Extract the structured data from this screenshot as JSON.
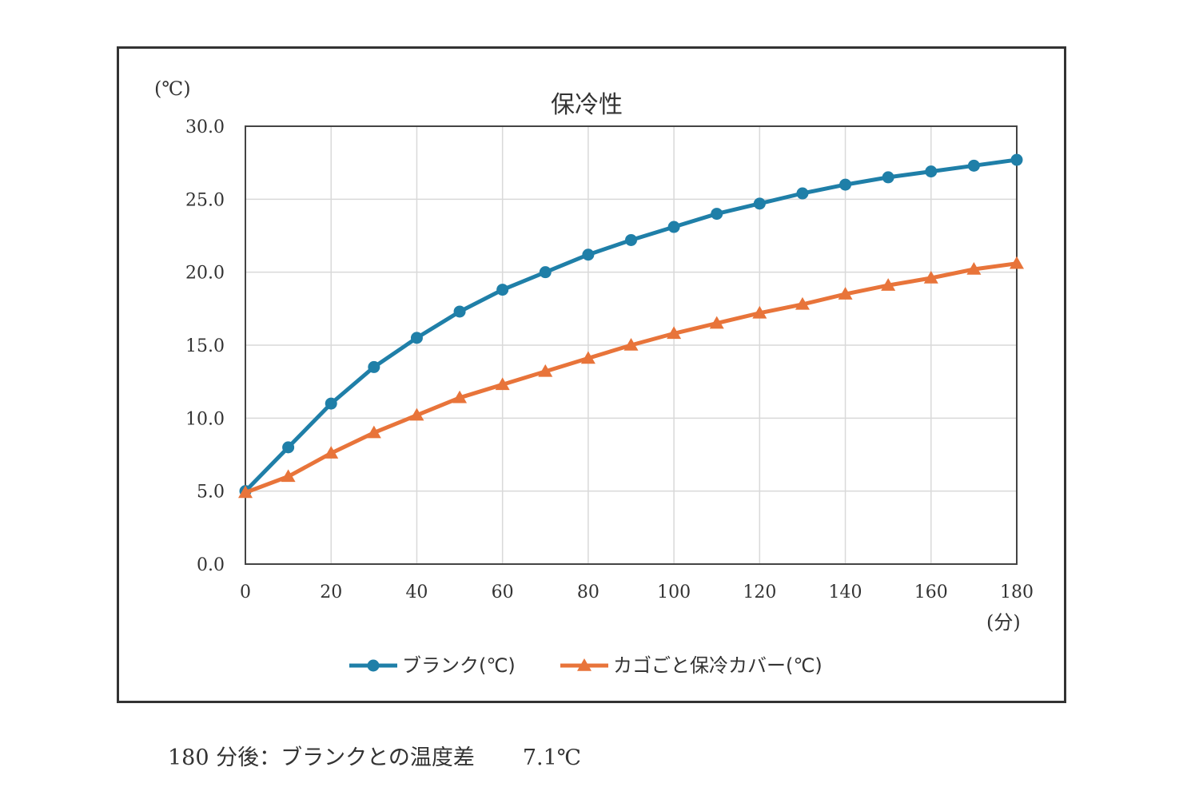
{
  "chart_data": {
    "type": "line",
    "title": "保冷性",
    "ylabel": "(℃)",
    "xlabel": "(分)",
    "ylim": [
      0,
      30
    ],
    "xlim": [
      0,
      180
    ],
    "y_ticks": [
      "0.0",
      "5.0",
      "10.0",
      "15.0",
      "20.0",
      "25.0",
      "30.0"
    ],
    "x_ticks": [
      "0",
      "20",
      "40",
      "60",
      "80",
      "100",
      "120",
      "140",
      "160",
      "180"
    ],
    "grid": true,
    "legend_position": "bottom",
    "x": [
      0,
      10,
      20,
      30,
      40,
      50,
      60,
      70,
      80,
      90,
      100,
      110,
      120,
      130,
      140,
      150,
      160,
      170,
      180
    ],
    "series": [
      {
        "name": "ブランク(℃)",
        "marker": "circle",
        "color": "#1f7fa8",
        "values": [
          5.0,
          8.0,
          11.0,
          13.5,
          15.5,
          17.3,
          18.8,
          20.0,
          21.2,
          22.2,
          23.1,
          24.0,
          24.7,
          25.4,
          26.0,
          26.5,
          26.9,
          27.3,
          27.7
        ]
      },
      {
        "name": "カゴごと保冷カバー(℃)",
        "marker": "triangle",
        "color": "#e8743a",
        "values": [
          4.9,
          6.0,
          7.6,
          9.0,
          10.2,
          11.4,
          12.3,
          13.2,
          14.1,
          15.0,
          15.8,
          16.5,
          17.2,
          17.8,
          18.5,
          19.1,
          19.6,
          20.2,
          20.6
        ]
      }
    ]
  },
  "footnote": {
    "label": "180 分後：ブランクとの温度差",
    "value": "7.1℃"
  }
}
